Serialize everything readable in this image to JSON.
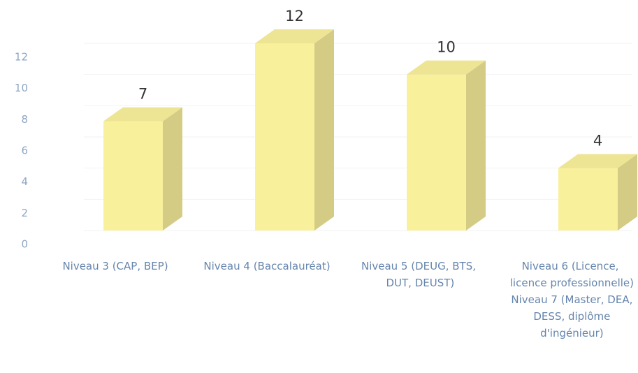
{
  "chart_data": {
    "type": "bar3d",
    "categories": [
      "Niveau 3 (CAP, BEP)",
      "Niveau 4 (Baccalauréat)",
      "Niveau 5 (DEUG, BTS, DUT, DEUST)",
      "Niveau 6 (Licence, licence professionnelle) Niveau 7 (Master, DEA, DESS, diplôme d'ingénieur)"
    ],
    "values": [
      7,
      12,
      10,
      4
    ],
    "color": "#f9f09c",
    "ylim": [
      0,
      12
    ],
    "yticks": [
      0,
      2,
      4,
      6,
      8,
      10,
      12
    ],
    "grid": true
  }
}
